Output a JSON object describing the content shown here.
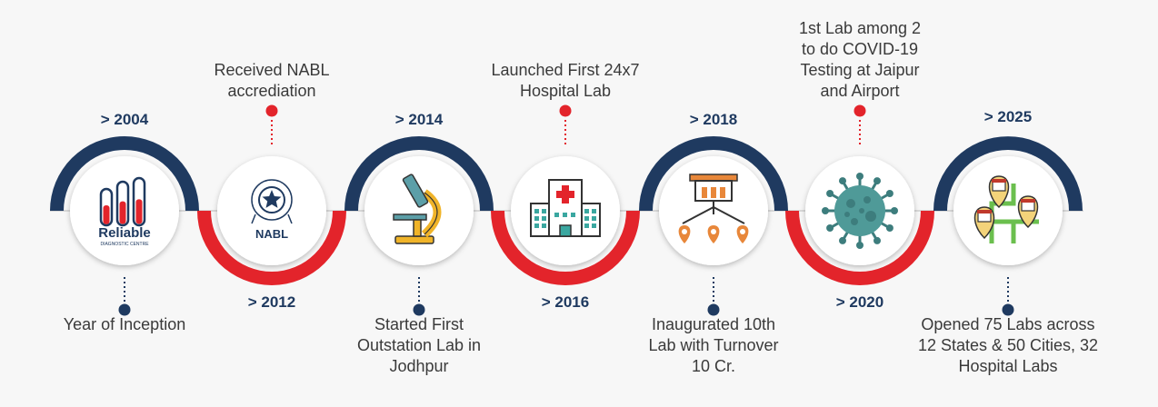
{
  "colors": {
    "navy": "#1f3a60",
    "red": "#e3242b",
    "white": "#ffffff",
    "text": "#3a3a3a"
  },
  "milestones": [
    {
      "year": "> 2004",
      "description": [
        "Year of Inception"
      ],
      "icon": "reliable-logo-icon",
      "logo_text": "Reliable",
      "logo_subtext": "DIAGNOSTIC CENTRE"
    },
    {
      "year": "> 2012",
      "description": [
        "Received NABL",
        "accrediation"
      ],
      "icon": "nabl-logo-icon",
      "logo_text": "NABL"
    },
    {
      "year": "> 2014",
      "description": [
        "Started First",
        "Outstation Lab in",
        "Jodhpur"
      ],
      "icon": "microscope-icon"
    },
    {
      "year": "> 2016",
      "description": [
        "Launched First 24x7",
        "Hospital Lab"
      ],
      "icon": "hospital-icon"
    },
    {
      "year": "> 2018",
      "description": [
        "Inaugurated 10th",
        "Lab with Turnover",
        "10 Cr."
      ],
      "icon": "expansion-icon"
    },
    {
      "year": "> 2020",
      "description": [
        "1st Lab among 2",
        "to do COVID-19",
        "Testing at Jaipur",
        "and Airport"
      ],
      "icon": "virus-icon"
    },
    {
      "year": "> 2025",
      "description": [
        "Opened 75 Labs across",
        "12 States & 50 Cities, 32",
        "Hospital Labs"
      ],
      "icon": "map-pins-icon"
    }
  ]
}
